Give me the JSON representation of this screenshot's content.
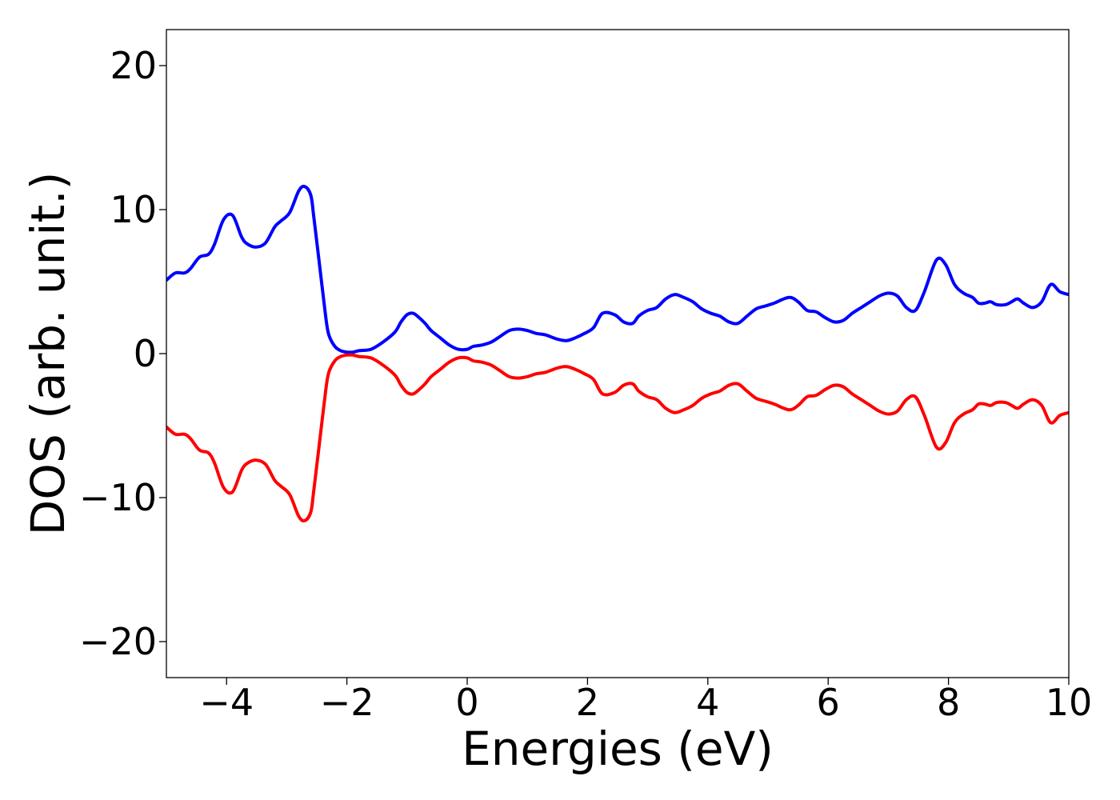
{
  "chart_data": {
    "type": "line",
    "xlabel": "Energies (eV)",
    "ylabel": "DOS (arb. unit.)",
    "xlim": [
      -5,
      10
    ],
    "ylim": [
      -22.5,
      22.5
    ],
    "xticks": [
      -4,
      -2,
      0,
      2,
      4,
      6,
      8,
      10
    ],
    "yticks": [
      -20,
      -10,
      0,
      10,
      20
    ],
    "xtick_labels": [
      "−4",
      "−2",
      "0",
      "2",
      "4",
      "6",
      "8",
      "10"
    ],
    "ytick_labels": [
      "−20",
      "−10",
      "0",
      "10",
      "20"
    ],
    "grid": false,
    "legend": "none",
    "series": [
      {
        "color": "#0000ff",
        "x": [
          -5.0,
          -4.85,
          -4.7,
          -4.6,
          -4.45,
          -4.3,
          -4.2,
          -4.05,
          -3.9,
          -3.75,
          -3.65,
          -3.5,
          -3.35,
          -3.2,
          -3.1,
          -2.95,
          -2.8,
          -2.7,
          -2.6,
          -2.55,
          -2.45,
          -2.35,
          -2.3,
          -2.2,
          -2.1,
          -2.0,
          -1.9,
          -1.8,
          -1.6,
          -1.4,
          -1.2,
          -1.1,
          -1.0,
          -0.9,
          -0.8,
          -0.7,
          -0.6,
          -0.45,
          -0.3,
          -0.15,
          0.0,
          0.1,
          0.25,
          0.4,
          0.55,
          0.7,
          0.85,
          1.0,
          1.15,
          1.3,
          1.5,
          1.65,
          1.8,
          1.95,
          2.1,
          2.25,
          2.45,
          2.6,
          2.75,
          2.85,
          3.0,
          3.15,
          3.3,
          3.45,
          3.6,
          3.75,
          3.9,
          4.05,
          4.2,
          4.35,
          4.5,
          4.65,
          4.8,
          4.95,
          5.1,
          5.35,
          5.5,
          5.65,
          5.8,
          5.95,
          6.1,
          6.25,
          6.4,
          6.55,
          6.7,
          6.85,
          7.0,
          7.15,
          7.3,
          7.45,
          7.6,
          7.8,
          7.95,
          8.1,
          8.25,
          8.4,
          8.5,
          8.6,
          8.7,
          8.8,
          8.95,
          9.05,
          9.15,
          9.25,
          9.4,
          9.55,
          9.7,
          9.85,
          10.0
        ],
        "y": [
          5.1,
          5.6,
          5.6,
          5.9,
          6.7,
          6.9,
          7.6,
          9.3,
          9.6,
          8.1,
          7.6,
          7.4,
          7.7,
          8.8,
          9.2,
          9.8,
          11.3,
          11.6,
          11.0,
          9.5,
          6.0,
          2.5,
          1.3,
          0.5,
          0.2,
          0.1,
          0.1,
          0.2,
          0.3,
          0.8,
          1.5,
          2.2,
          2.7,
          2.8,
          2.5,
          2.1,
          1.6,
          1.1,
          0.6,
          0.3,
          0.3,
          0.5,
          0.6,
          0.8,
          1.2,
          1.6,
          1.7,
          1.6,
          1.4,
          1.3,
          1.0,
          0.9,
          1.1,
          1.4,
          1.8,
          2.8,
          2.7,
          2.2,
          2.1,
          2.6,
          3.0,
          3.2,
          3.8,
          4.1,
          3.9,
          3.6,
          3.1,
          2.8,
          2.6,
          2.2,
          2.1,
          2.6,
          3.1,
          3.3,
          3.5,
          3.9,
          3.6,
          3.0,
          2.9,
          2.5,
          2.2,
          2.3,
          2.8,
          3.2,
          3.6,
          4.0,
          4.2,
          4.0,
          3.2,
          3.0,
          4.3,
          6.5,
          6.2,
          4.8,
          4.2,
          3.9,
          3.5,
          3.5,
          3.6,
          3.4,
          3.4,
          3.6,
          3.8,
          3.5,
          3.2,
          3.6,
          4.8,
          4.3,
          4.1
        ]
      },
      {
        "color": "#ff0000",
        "x": [
          -5.0,
          -4.85,
          -4.7,
          -4.6,
          -4.45,
          -4.3,
          -4.2,
          -4.05,
          -3.9,
          -3.75,
          -3.65,
          -3.5,
          -3.35,
          -3.2,
          -3.1,
          -2.95,
          -2.8,
          -2.7,
          -2.6,
          -2.55,
          -2.45,
          -2.35,
          -2.3,
          -2.2,
          -2.1,
          -2.0,
          -1.9,
          -1.8,
          -1.6,
          -1.4,
          -1.2,
          -1.1,
          -1.0,
          -0.9,
          -0.8,
          -0.7,
          -0.6,
          -0.45,
          -0.3,
          -0.15,
          0.0,
          0.1,
          0.25,
          0.4,
          0.55,
          0.7,
          0.85,
          1.0,
          1.15,
          1.3,
          1.5,
          1.65,
          1.8,
          1.95,
          2.1,
          2.25,
          2.45,
          2.6,
          2.75,
          2.85,
          3.0,
          3.15,
          3.3,
          3.45,
          3.6,
          3.75,
          3.9,
          4.05,
          4.2,
          4.35,
          4.5,
          4.65,
          4.8,
          4.95,
          5.1,
          5.35,
          5.5,
          5.65,
          5.8,
          5.95,
          6.1,
          6.25,
          6.4,
          6.55,
          6.7,
          6.85,
          7.0,
          7.15,
          7.3,
          7.45,
          7.6,
          7.8,
          7.95,
          8.1,
          8.25,
          8.4,
          8.5,
          8.6,
          8.7,
          8.8,
          8.95,
          9.05,
          9.15,
          9.25,
          9.4,
          9.55,
          9.7,
          9.85,
          10.0
        ],
        "y": [
          -5.1,
          -5.6,
          -5.6,
          -5.9,
          -6.7,
          -6.9,
          -7.6,
          -9.3,
          -9.6,
          -8.1,
          -7.6,
          -7.4,
          -7.7,
          -8.8,
          -9.2,
          -9.8,
          -11.3,
          -11.6,
          -11.0,
          -9.5,
          -6.0,
          -2.5,
          -1.3,
          -0.5,
          -0.2,
          -0.1,
          -0.1,
          -0.2,
          -0.3,
          -0.8,
          -1.5,
          -2.2,
          -2.7,
          -2.8,
          -2.5,
          -2.1,
          -1.6,
          -1.1,
          -0.6,
          -0.3,
          -0.3,
          -0.5,
          -0.6,
          -0.8,
          -1.2,
          -1.6,
          -1.7,
          -1.6,
          -1.4,
          -1.3,
          -1.0,
          -0.9,
          -1.1,
          -1.4,
          -1.8,
          -2.8,
          -2.7,
          -2.2,
          -2.1,
          -2.6,
          -3.0,
          -3.2,
          -3.8,
          -4.1,
          -3.9,
          -3.6,
          -3.1,
          -2.8,
          -2.6,
          -2.2,
          -2.1,
          -2.6,
          -3.1,
          -3.3,
          -3.5,
          -3.9,
          -3.6,
          -3.0,
          -2.9,
          -2.5,
          -2.2,
          -2.3,
          -2.8,
          -3.2,
          -3.6,
          -4.0,
          -4.2,
          -4.0,
          -3.2,
          -3.0,
          -4.3,
          -6.5,
          -6.2,
          -4.8,
          -4.2,
          -3.9,
          -3.5,
          -3.5,
          -3.6,
          -3.4,
          -3.4,
          -3.6,
          -3.8,
          -3.5,
          -3.2,
          -3.6,
          -4.8,
          -4.3,
          -4.1
        ]
      }
    ]
  }
}
